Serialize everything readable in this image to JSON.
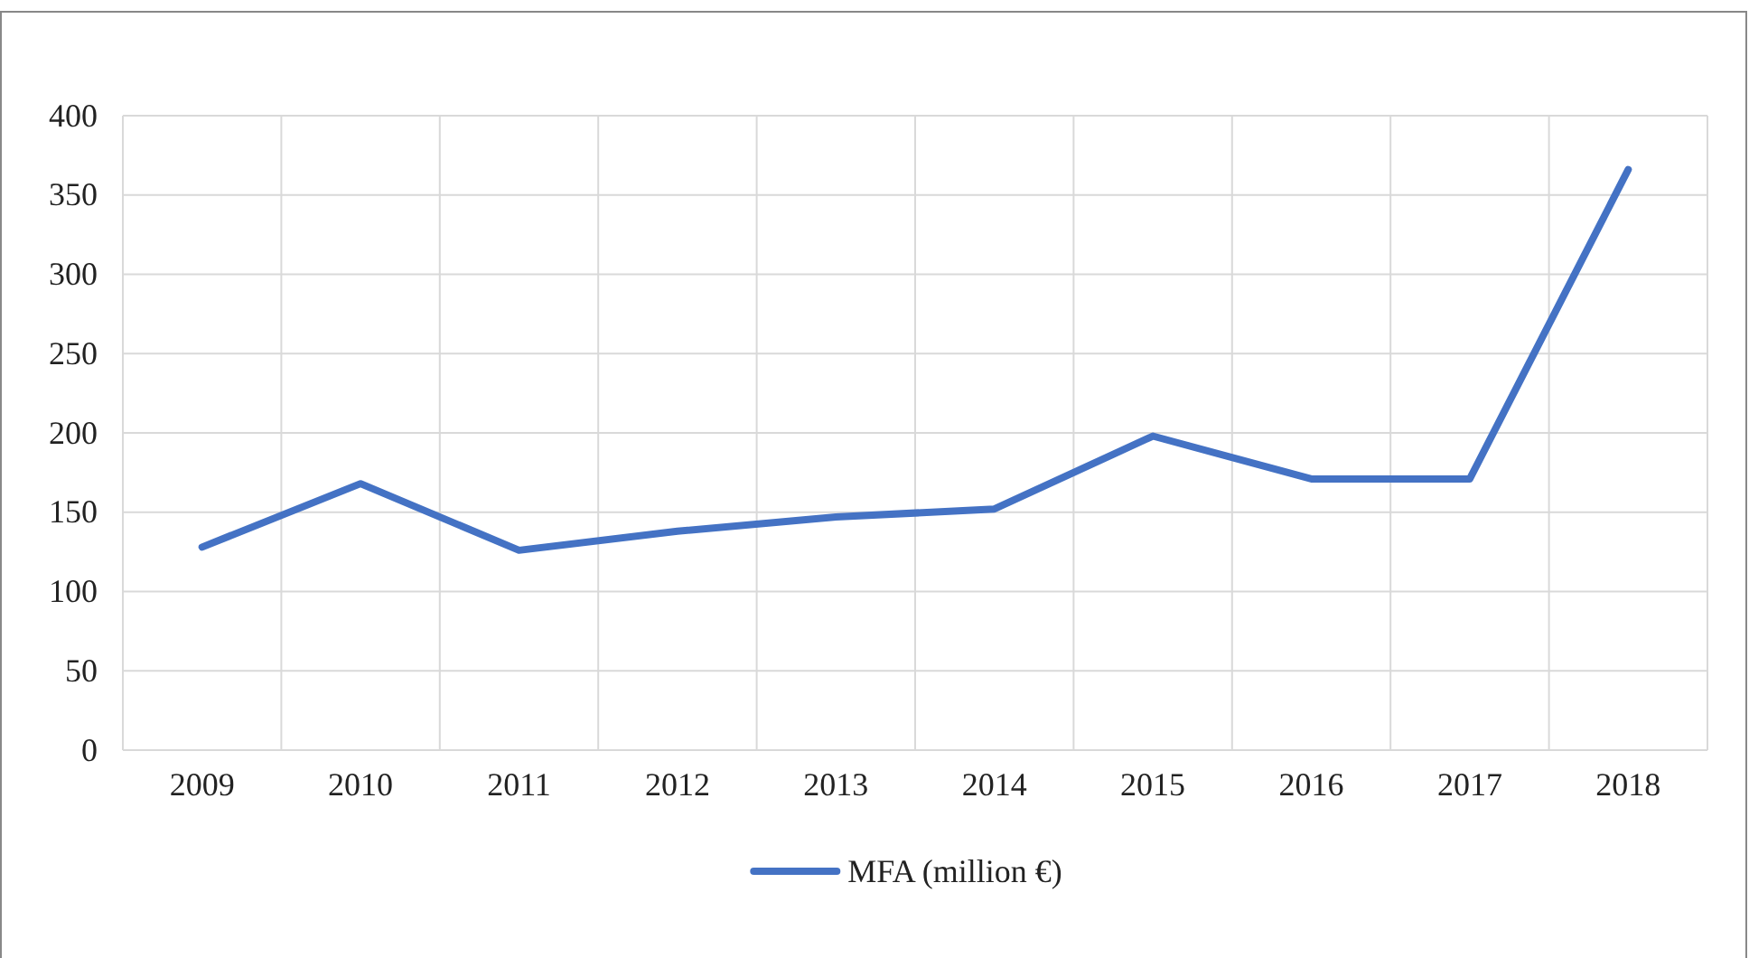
{
  "chart_data": {
    "type": "line",
    "categories": [
      "2009",
      "2010",
      "2011",
      "2012",
      "2013",
      "2014",
      "2015",
      "2016",
      "2017",
      "2018"
    ],
    "series": [
      {
        "name": "MFA (million €)",
        "color": "#4472c4",
        "values": [
          128,
          168,
          126,
          138,
          147,
          152,
          198,
          171,
          171,
          366
        ]
      }
    ],
    "ylim": [
      0,
      400
    ],
    "yticks": [
      0,
      50,
      100,
      150,
      200,
      250,
      300,
      350,
      400
    ],
    "grid": true,
    "legend": "bottom",
    "marker": "none",
    "line_style": "solid"
  }
}
